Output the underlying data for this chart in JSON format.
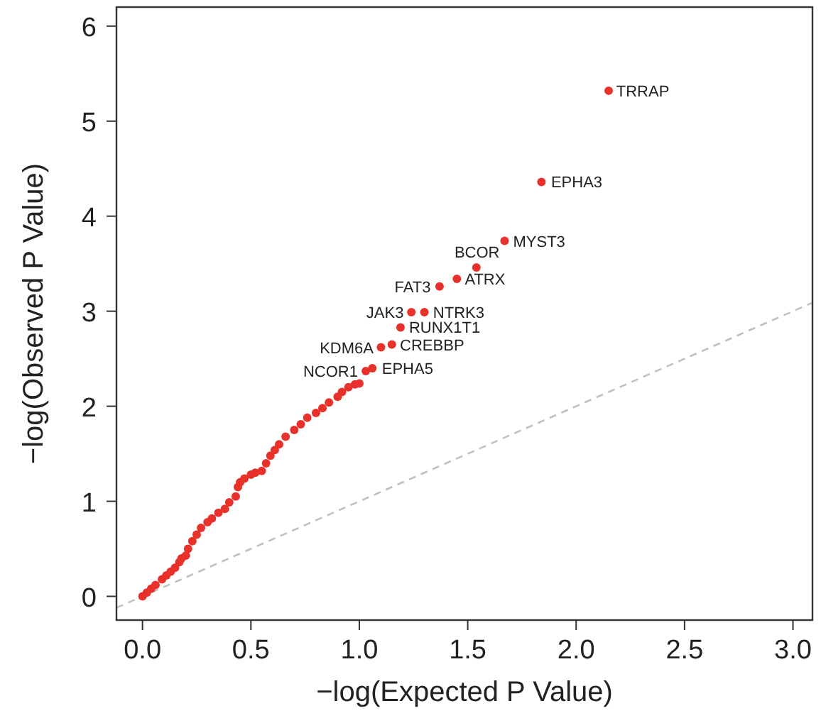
{
  "chart_data": {
    "type": "scatter",
    "xlabel": "−log(Expected P Value)",
    "ylabel": "−log(Observed P Value)",
    "xlim": [
      -0.12,
      3.09
    ],
    "ylim": [
      -0.25,
      6.2
    ],
    "xticks": [
      {
        "value": 0,
        "label": "0.0"
      },
      0.5,
      {
        "value": 1,
        "label": "1.0"
      },
      1.5,
      {
        "value": 2,
        "label": "2.0"
      },
      2.5,
      {
        "value": 3,
        "label": "3.0"
      }
    ],
    "yticks": [
      0,
      1,
      2,
      3,
      4,
      5,
      6
    ],
    "grid": false,
    "series": [
      {
        "color": "#e8312a",
        "marker": "circle",
        "x": [
          0,
          0.02,
          0.04,
          0.06,
          0.09,
          0.11,
          0.13,
          0.15,
          0.17,
          0.18,
          0.2,
          0.21,
          0.23,
          0.25,
          0.27,
          0.3,
          0.32,
          0.35,
          0.38,
          0.4,
          0.43,
          0.44,
          0.45,
          0.47,
          0.5,
          0.52,
          0.55,
          0.57,
          0.59,
          0.61,
          0.63,
          0.66,
          0.7,
          0.73,
          0.76,
          0.8,
          0.83,
          0.86,
          0.9,
          0.92,
          0.95,
          0.98,
          1,
          1.03,
          1.06,
          1.1,
          1.15,
          1.19,
          1.24,
          1.3,
          1.37,
          1.45,
          1.54,
          1.67,
          1.84,
          2.15
        ],
        "values": [
          0,
          0.04,
          0.08,
          0.12,
          0.18,
          0.22,
          0.26,
          0.3,
          0.36,
          0.4,
          0.43,
          0.5,
          0.58,
          0.65,
          0.72,
          0.78,
          0.82,
          0.88,
          0.92,
          0.99,
          1.05,
          1.15,
          1.2,
          1.24,
          1.28,
          1.3,
          1.32,
          1.4,
          1.48,
          1.54,
          1.6,
          1.68,
          1.75,
          1.81,
          1.88,
          1.93,
          1.98,
          2.04,
          2.1,
          2.15,
          2.2,
          2.23,
          2.24,
          2.37,
          2.4,
          2.62,
          2.65,
          2.83,
          2.99,
          2.99,
          3.26,
          3.34,
          3.46,
          3.74,
          4.36,
          5.32
        ]
      },
      {
        "type": "line",
        "color": "#c0c0c0",
        "line_style": "dashed",
        "x": [
          -0.12,
          3.09
        ],
        "values": [
          -0.12,
          3.09
        ]
      }
    ],
    "annotations": [
      {
        "text": "TRRAP",
        "x": 2.146,
        "y": 5.32
      },
      {
        "text": "EPHA3",
        "x": 1.845,
        "y": 4.36
      },
      {
        "text": "MYST3",
        "x": 1.67,
        "y": 3.74
      },
      {
        "text": "BCOR",
        "x": 1.543,
        "y": 3.46
      },
      {
        "text": "ATRX",
        "x": 1.447,
        "y": 3.34
      },
      {
        "text": "FAT3",
        "x": 1.369,
        "y": 3.26
      },
      {
        "text": "NTRK3",
        "x": 1.301,
        "y": 2.99
      },
      {
        "text": "JAK3",
        "x": 1.244,
        "y": 2.99
      },
      {
        "text": "RUNX1T1",
        "x": 1.19,
        "y": 2.83
      },
      {
        "text": "CREBBP",
        "x": 1.148,
        "y": 2.65
      },
      {
        "text": "KDM6A",
        "x": 1.105,
        "y": 2.62
      },
      {
        "text": "EPHA5",
        "x": 1.065,
        "y": 2.4
      },
      {
        "text": "NCOR1",
        "x": 1.033,
        "y": 2.37
      }
    ]
  }
}
